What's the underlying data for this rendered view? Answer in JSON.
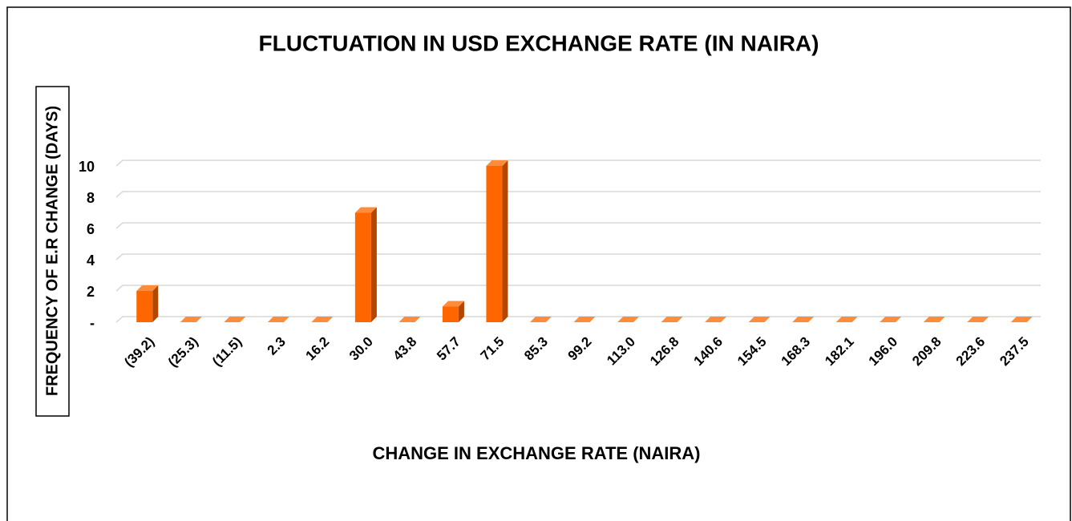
{
  "chart_data": {
    "type": "bar",
    "title": "FLUCTUATION IN USD EXCHANGE RATE (IN NAIRA)",
    "x_label": "CHANGE IN EXCHANGE RATE (NAIRA)",
    "y_label": "FREQUENCY OF E.R CHANGE (DAYS)",
    "categories": [
      "(39.2)",
      "(25.3)",
      "(11.5)",
      "2.3",
      "16.2",
      "30.0",
      "43.8",
      "57.7",
      "71.5",
      "85.3",
      "99.2",
      "113.0",
      "126.8",
      "140.6",
      "154.5",
      "168.3",
      "182.1",
      "196.0",
      "209.8",
      "223.6",
      "237.5"
    ],
    "values": [
      2,
      0,
      0,
      0,
      0,
      7,
      0,
      1,
      10,
      0,
      0,
      0,
      0,
      0,
      0,
      0,
      0,
      0,
      0,
      0,
      0
    ],
    "color": "#ff6600",
    "ylim": [
      0,
      10
    ],
    "yticks": [
      {
        "value": 0,
        "label": "-"
      },
      2,
      4,
      6,
      8,
      10
    ],
    "grid": true
  }
}
